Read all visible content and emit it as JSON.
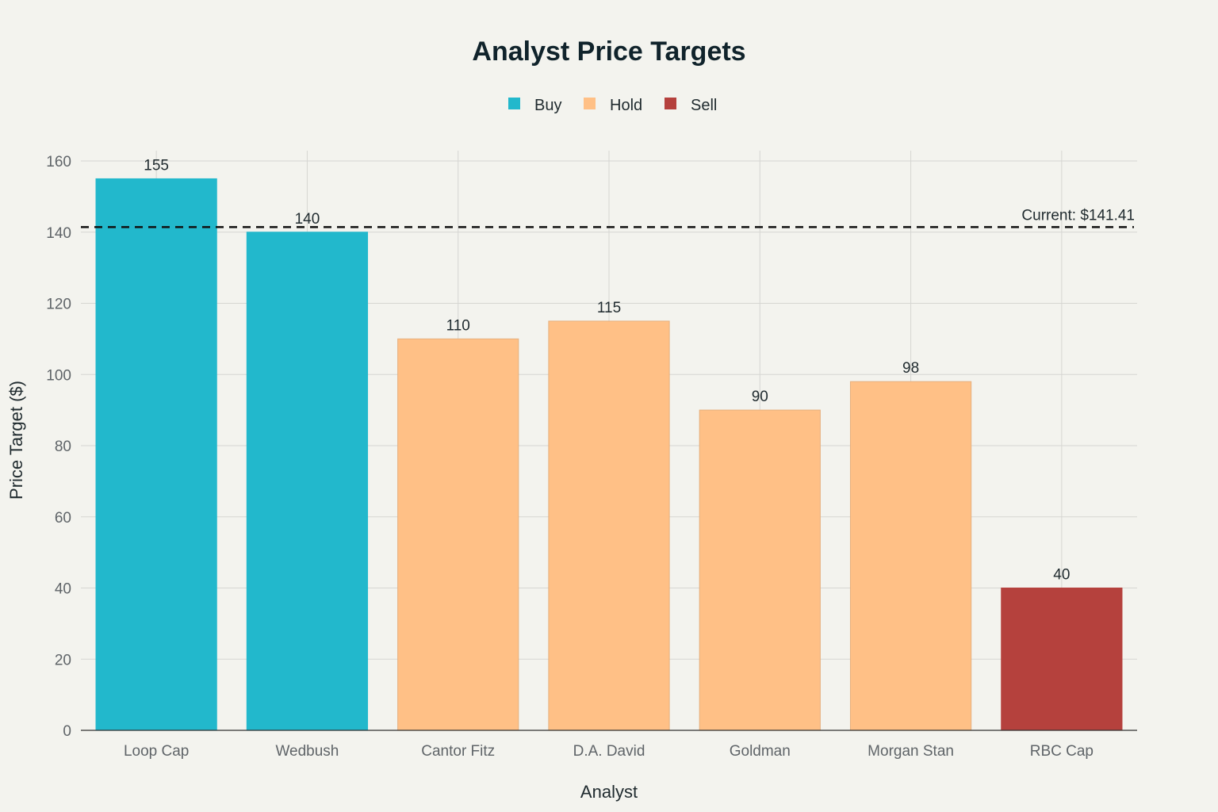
{
  "chart_data": {
    "type": "bar",
    "title": "Analyst Price Targets",
    "xlabel": "Analyst",
    "ylabel": "Price Target ($)",
    "ylim": [
      0,
      160
    ],
    "yticks": [
      0,
      20,
      40,
      60,
      80,
      100,
      120,
      140,
      160
    ],
    "grid": true,
    "legend": {
      "placement": "top-center",
      "items": [
        {
          "name": "Buy",
          "color": "#22b8cc"
        },
        {
          "name": "Hold",
          "color": "#ffc086"
        },
        {
          "name": "Sell",
          "color": "#b5413d"
        }
      ]
    },
    "categories": [
      "Loop Cap",
      "Wedbush",
      "Cantor Fitz",
      "D.A. David",
      "Goldman",
      "Morgan Stan",
      "RBC Cap"
    ],
    "values": [
      155,
      140,
      110,
      115,
      90,
      98,
      40
    ],
    "ratings": [
      "Buy",
      "Buy",
      "Hold",
      "Hold",
      "Hold",
      "Hold",
      "Sell"
    ],
    "reference_line": {
      "value": 141.41,
      "label": "Current: $141.41",
      "style": "dashed",
      "color": "#111111"
    }
  }
}
